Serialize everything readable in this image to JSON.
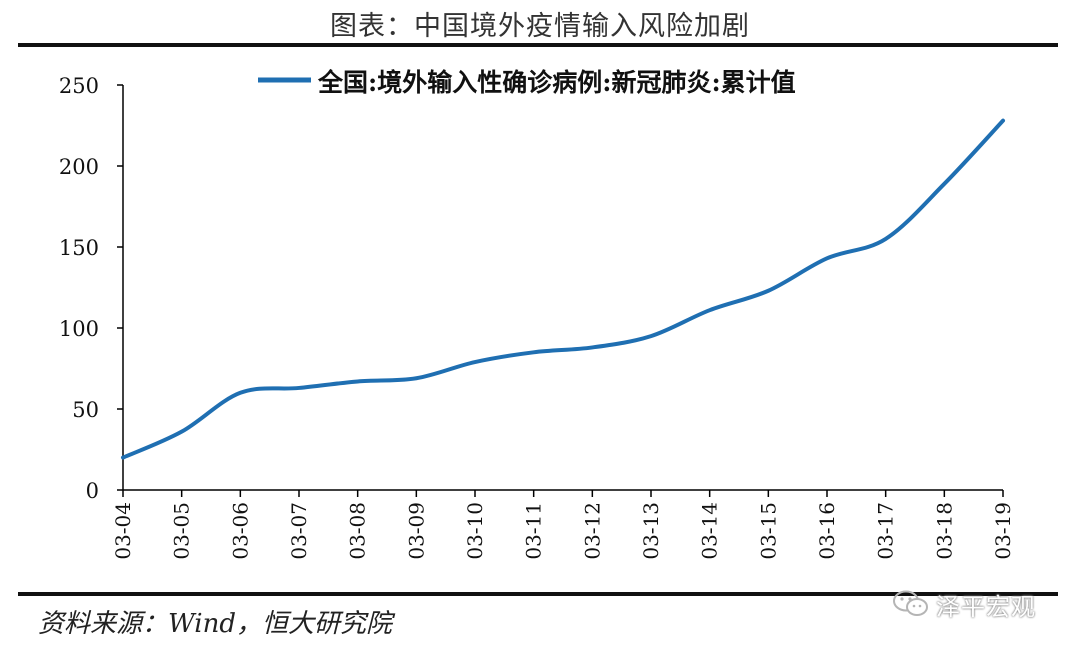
{
  "title": "图表：中国境外疫情输入风险加剧",
  "source": "资料来源：Wind，恒大研究院",
  "watermark": {
    "text": "泽平宏观",
    "icon": "wechat-icon"
  },
  "colors": {
    "line": "#1f6fb2",
    "axis": "#000000",
    "rule": "#111111"
  },
  "chart_data": {
    "type": "line",
    "title": "",
    "xlabel": "",
    "ylabel": "",
    "legend_position": "top",
    "grid": false,
    "ylim": [
      0,
      250
    ],
    "yticks": [
      0,
      50,
      100,
      150,
      200,
      250
    ],
    "categories": [
      "03-04",
      "03-05",
      "03-06",
      "03-07",
      "03-08",
      "03-09",
      "03-10",
      "03-11",
      "03-12",
      "03-13",
      "03-14",
      "03-15",
      "03-16",
      "03-17",
      "03-18",
      "03-19"
    ],
    "series": [
      {
        "name": "全国:境外输入性确诊病例:新冠肺炎:累计值",
        "values": [
          20,
          36,
          60,
          63,
          67,
          69,
          79,
          85,
          88,
          95,
          111,
          123,
          143,
          155,
          189,
          228
        ]
      }
    ]
  }
}
